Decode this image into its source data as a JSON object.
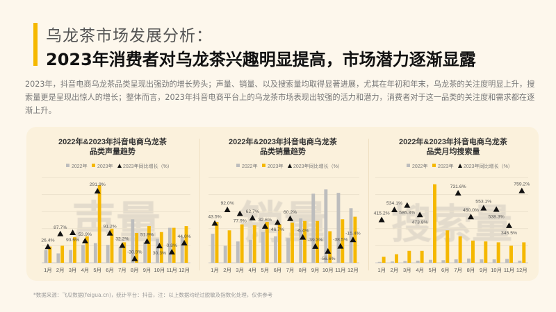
{
  "header": {
    "subtitle": "乌龙茶市场发展分析：",
    "headline": "2023年消费者对乌龙茶兴趣明显提高，市场潜力逐渐显露",
    "description": "2023年，抖音电商乌龙茶品类呈现出强劲的增长势头；声量、销量、以及搜索量均取得显著进展，尤其在年初和年末，乌龙茶的关注度明显上升，搜索量更是呈现出惊人的增长；整体而言，2023年抖音电商平台上的乌龙茶市场表现出较强的活力和潜力，消费者对于这一品类的关注度和需求都在逐渐上升。"
  },
  "footnote": "*数据来源：飞瓜数据(feigua.cn)，统计平台：抖音，注：以上数据均经过脱敏及指数化处理，仅供参考",
  "colors": {
    "series_2022": "#bdbdbd",
    "series_2023": "#f5b800",
    "growth_marker": "#111111",
    "accent": "#f5b800"
  },
  "chart_data": [
    {
      "type": "bar",
      "title_line1": "2022年&2023年抖音电商乌龙茶",
      "title_line2": "品类声量趋势",
      "watermark": "声量",
      "legend": [
        "2022年",
        "2023年",
        "2023年同比增长（%）"
      ],
      "legend_placement": "top",
      "grid": true,
      "categories": [
        "1月",
        "2月",
        "3月",
        "4月",
        "5月",
        "6月",
        "7月",
        "8月",
        "9月",
        "10月",
        "11月",
        "12月"
      ],
      "ylim": [
        0,
        100
      ],
      "y2lim": [
        -52,
        355
      ],
      "series": [
        {
          "name": "2022年",
          "values": [
            15,
            11,
            15,
            21,
            23,
            21,
            18,
            51,
            24,
            28,
            41,
            30
          ]
        },
        {
          "name": "2023年",
          "values": [
            19,
            20,
            30,
            31,
            91,
            40,
            24,
            35,
            43,
            36,
            41,
            43
          ]
        },
        {
          "name": "2023年同比增长（%）",
          "type": "marker",
          "values": [
            26.4,
            87.7,
            93.5,
            53.9,
            291.9,
            91.2,
            32.2,
            -30.9,
            51.9,
            30.3,
            0.8,
            44.0
          ],
          "labels": [
            "26.4%",
            "87.7%",
            "93.5%",
            "53.9%",
            "291.9%",
            "91.2%",
            "32.2%",
            "-30.9%",
            "51.9%",
            "30.3%",
            "0.8%",
            "44.0%"
          ]
        }
      ]
    },
    {
      "type": "bar",
      "title_line1": "2022年&2023年抖音电商乌龙茶",
      "title_line2": "品类销量趋势",
      "watermark": "销量",
      "legend": [
        "2022年",
        "2023年",
        "2023年同比增长（%）"
      ],
      "legend_placement": "top",
      "grid": true,
      "categories": [
        "1月",
        "2月",
        "3月",
        "4月",
        "5月",
        "6月",
        "7月",
        "8月",
        "9月",
        "10月",
        "11月",
        "12月"
      ],
      "ylim": [
        0,
        100
      ],
      "y2lim": [
        -99,
        206
      ],
      "series": [
        {
          "name": "2022年",
          "values": [
            34,
            20,
            25,
            27,
            36,
            31,
            29,
            52,
            81,
            86,
            82,
            64
          ]
        },
        {
          "name": "2023年",
          "values": [
            48,
            38,
            45,
            44,
            48,
            45,
            47,
            49,
            49,
            37,
            51,
            54
          ]
        },
        {
          "name": "2023年同比增长（%）",
          "type": "marker",
          "values": [
            43.5,
            92.0,
            77.9,
            62.7,
            32.6,
            46.7,
            60.2,
            -6.4,
            -39.3,
            -56.6,
            -38.5,
            -15.4
          ],
          "labels": [
            "43.5%",
            "92.0%",
            "77.9%",
            "62.7%",
            "32.6%",
            "46.7%",
            "60.2%",
            "-6.4%",
            "-39.3%",
            "-56.6%",
            "-38.5%",
            "-15.4%"
          ]
        }
      ]
    },
    {
      "type": "bar",
      "title_line1": "2022年&2023年抖音电商乌龙茶",
      "title_line2": "品类月均搜索量",
      "watermark": "搜索量",
      "legend": [
        "2022年",
        "2023年",
        "2023年同比增长（%）"
      ],
      "legend_placement": "top",
      "grid": true,
      "categories": [
        "1月",
        "2月",
        "3月",
        "4月",
        "5月",
        "6月",
        "7月",
        "8月",
        "9月",
        "10月",
        "11月",
        "12月"
      ],
      "ylim": [
        0,
        100
      ],
      "y2lim": [
        -99,
        912
      ],
      "series": [
        {
          "name": "2022年",
          "values": [
            1,
            1.5,
            2,
            2.5,
            3.5,
            3,
            4,
            5,
            4,
            4,
            4.5,
            2.5
          ]
        },
        {
          "name": "2023年",
          "values": [
            7,
            10,
            14,
            14,
            92,
            38,
            31,
            26,
            25,
            24,
            20,
            24
          ]
        },
        {
          "name": "2023年同比增长（%）",
          "type": "marker",
          "values": [
            415.2,
            534.1,
            586.3,
            473.8,
            null,
            null,
            731.6,
            450.0,
            553.1,
            538.3,
            345.5,
            759.2
          ],
          "labels": [
            "415.2%",
            "534.1%",
            "586.3%",
            "473.8%",
            "",
            "",
            "731.6%",
            "450.0%",
            "553.1%",
            "538.3%",
            "345.5%",
            "759.2%"
          ]
        }
      ]
    }
  ]
}
